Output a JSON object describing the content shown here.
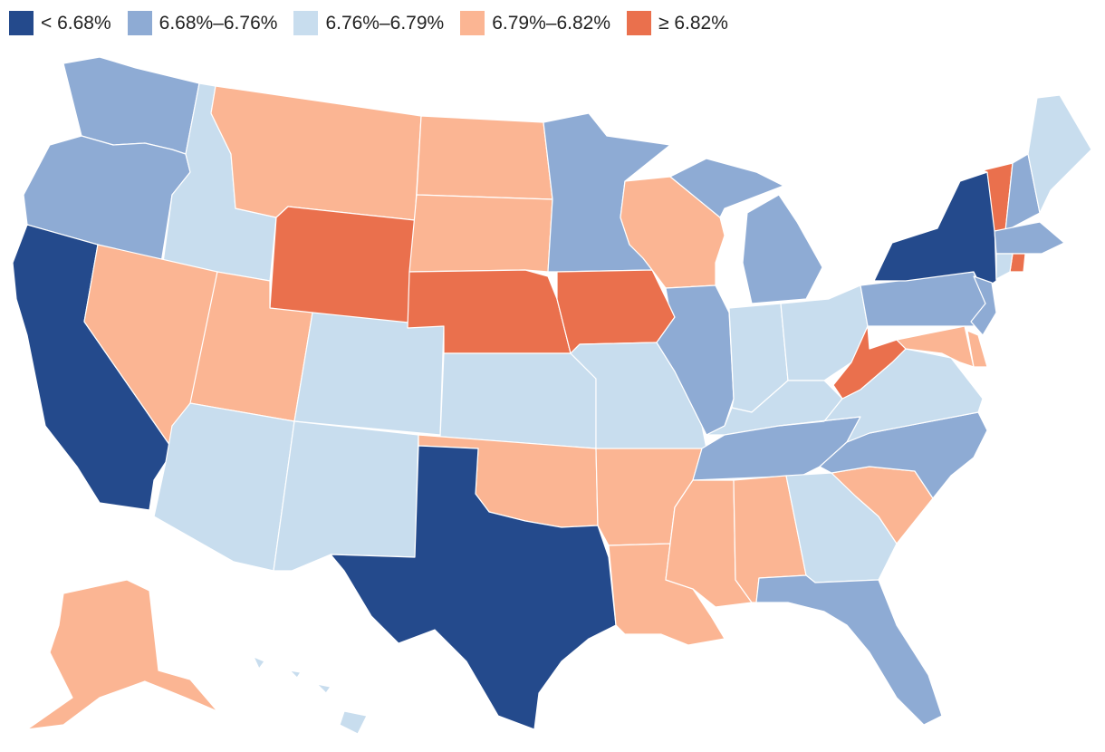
{
  "legend": {
    "items": [
      {
        "label": "< 6.68%",
        "color": "#244a8c"
      },
      {
        "label": "6.68%–6.76%",
        "color": "#8eabd4"
      },
      {
        "label": "6.76%–6.79%",
        "color": "#c8ddee"
      },
      {
        "label": "6.79%–6.82%",
        "color": "#fbb593"
      },
      {
        "label": "≥ 6.82%",
        "color": "#ea704d"
      }
    ]
  },
  "states": [
    {
      "name": "WA",
      "bin": 1
    },
    {
      "name": "OR",
      "bin": 1
    },
    {
      "name": "CA",
      "bin": 0
    },
    {
      "name": "ID",
      "bin": 2
    },
    {
      "name": "NV",
      "bin": 3
    },
    {
      "name": "MT",
      "bin": 3
    },
    {
      "name": "WY",
      "bin": 4
    },
    {
      "name": "UT",
      "bin": 3
    },
    {
      "name": "AZ",
      "bin": 2
    },
    {
      "name": "CO",
      "bin": 2
    },
    {
      "name": "NM",
      "bin": 2
    },
    {
      "name": "ND",
      "bin": 3
    },
    {
      "name": "SD",
      "bin": 3
    },
    {
      "name": "NE",
      "bin": 4
    },
    {
      "name": "KS",
      "bin": 2
    },
    {
      "name": "OK",
      "bin": 3
    },
    {
      "name": "TX",
      "bin": 0
    },
    {
      "name": "MN",
      "bin": 1
    },
    {
      "name": "IA",
      "bin": 4
    },
    {
      "name": "MO",
      "bin": 2
    },
    {
      "name": "AR",
      "bin": 3
    },
    {
      "name": "LA",
      "bin": 3
    },
    {
      "name": "WI",
      "bin": 3
    },
    {
      "name": "IL",
      "bin": 1
    },
    {
      "name": "MI",
      "bin": 1
    },
    {
      "name": "IN",
      "bin": 2
    },
    {
      "name": "OH",
      "bin": 2
    },
    {
      "name": "KY",
      "bin": 2
    },
    {
      "name": "TN",
      "bin": 1
    },
    {
      "name": "MS",
      "bin": 3
    },
    {
      "name": "AL",
      "bin": 3
    },
    {
      "name": "GA",
      "bin": 2
    },
    {
      "name": "FL",
      "bin": 1
    },
    {
      "name": "SC",
      "bin": 3
    },
    {
      "name": "NC",
      "bin": 1
    },
    {
      "name": "VA",
      "bin": 2
    },
    {
      "name": "WV",
      "bin": 4
    },
    {
      "name": "PA",
      "bin": 1
    },
    {
      "name": "NY",
      "bin": 0
    },
    {
      "name": "VT",
      "bin": 4
    },
    {
      "name": "NH",
      "bin": 1
    },
    {
      "name": "ME",
      "bin": 2
    },
    {
      "name": "MA",
      "bin": 1
    },
    {
      "name": "RI",
      "bin": 4
    },
    {
      "name": "CT",
      "bin": 2
    },
    {
      "name": "NJ",
      "bin": 1
    },
    {
      "name": "DE",
      "bin": 3
    },
    {
      "name": "MD",
      "bin": 3
    },
    {
      "name": "AK",
      "bin": 3
    },
    {
      "name": "HI",
      "bin": 2
    }
  ]
}
